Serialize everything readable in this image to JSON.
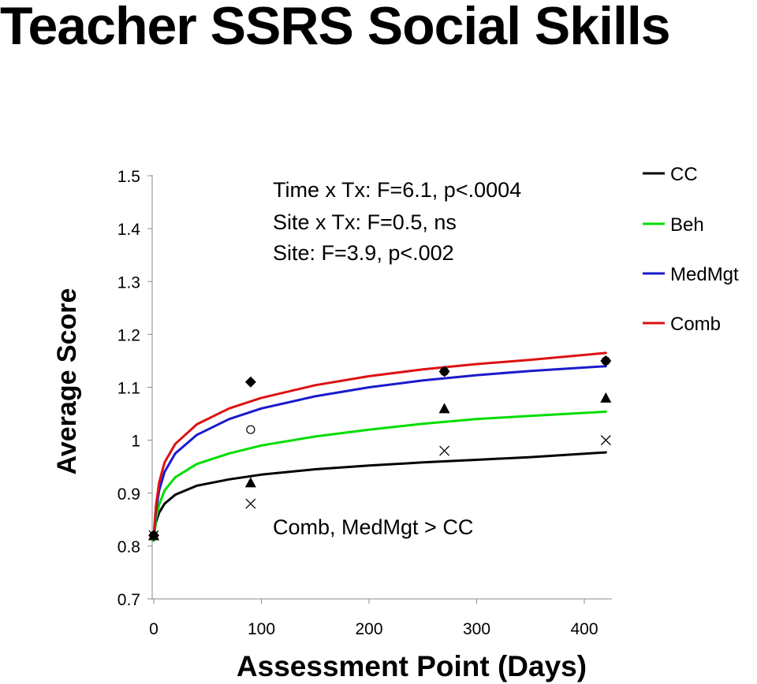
{
  "chart_data": {
    "type": "line",
    "title": "Teacher SSRS Social Skills",
    "xlabel": "Assessment Point (Days)",
    "ylabel": "Average Score",
    "xlim": [
      0,
      425
    ],
    "ylim": [
      0.7,
      1.5
    ],
    "x_ticks": [
      "0",
      "100",
      "200",
      "300",
      "400"
    ],
    "y_ticks": [
      "0.7",
      "0.8",
      "0.9",
      "1",
      "1.1",
      "1.2",
      "1.3",
      "1.4",
      "1.5"
    ],
    "grid": false,
    "legend_position": "top-right",
    "annotations": [
      "Time x Tx: F=6.1, p<.0004",
      "Site x Tx: F=0.5, ns",
      "Site: F=3.9, p<.002",
      "Comb, MedMgt > CC"
    ],
    "series": [
      {
        "name": "CC",
        "color": "#000000",
        "marker": "x",
        "fitted_curve": {
          "x": [
            0,
            2,
            5,
            10,
            20,
            40,
            70,
            100,
            150,
            200,
            250,
            300,
            350,
            420
          ],
          "y": [
            0.82,
            0.845,
            0.863,
            0.88,
            0.897,
            0.914,
            0.926,
            0.935,
            0.945,
            0.952,
            0.958,
            0.963,
            0.968,
            0.977
          ]
        },
        "observed": {
          "x": [
            0,
            90,
            270,
            420
          ],
          "y": [
            0.82,
            0.88,
            0.98,
            1.0
          ]
        }
      },
      {
        "name": "Beh",
        "color": "#00dd00",
        "marker": "triangle",
        "fitted_curve": {
          "x": [
            0,
            2,
            5,
            10,
            20,
            40,
            70,
            100,
            150,
            200,
            250,
            300,
            350,
            420
          ],
          "y": [
            0.81,
            0.85,
            0.878,
            0.905,
            0.93,
            0.955,
            0.975,
            0.99,
            1.007,
            1.02,
            1.031,
            1.04,
            1.046,
            1.054
          ]
        },
        "observed": {
          "x": [
            0,
            90,
            270,
            420
          ],
          "y": [
            0.82,
            0.92,
            1.06,
            1.08
          ]
        }
      },
      {
        "name": "MedMgt",
        "color": "#1a1acc",
        "marker": "circle",
        "fitted_curve": {
          "x": [
            0,
            2,
            5,
            10,
            20,
            40,
            70,
            100,
            150,
            200,
            250,
            300,
            350,
            420
          ],
          "y": [
            0.815,
            0.865,
            0.905,
            0.94,
            0.975,
            1.01,
            1.04,
            1.06,
            1.083,
            1.1,
            1.113,
            1.123,
            1.131,
            1.14
          ]
        },
        "observed": {
          "x": [
            0,
            90,
            270,
            420
          ],
          "y": [
            0.82,
            1.02,
            1.13,
            1.15
          ]
        }
      },
      {
        "name": "Comb",
        "color": "#dd1111",
        "marker": "diamond",
        "fitted_curve": {
          "x": [
            0,
            2,
            5,
            10,
            20,
            40,
            70,
            100,
            150,
            200,
            250,
            300,
            350,
            420
          ],
          "y": [
            0.82,
            0.875,
            0.92,
            0.958,
            0.993,
            1.03,
            1.06,
            1.08,
            1.104,
            1.121,
            1.134,
            1.144,
            1.152,
            1.165
          ]
        },
        "observed": {
          "x": [
            0,
            90,
            270,
            420
          ],
          "y": [
            0.82,
            1.11,
            1.13,
            1.15
          ]
        }
      }
    ]
  }
}
